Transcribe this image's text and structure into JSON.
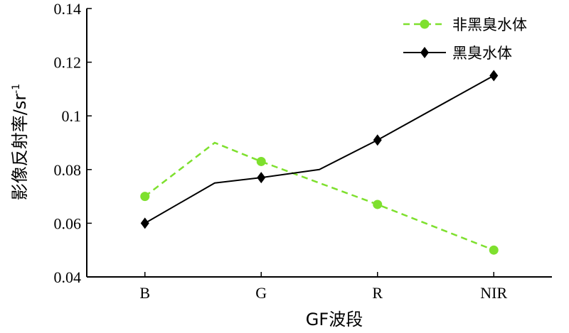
{
  "chart_data": {
    "type": "line",
    "title": "",
    "xlabel": "GF波段",
    "ylabel": "影像反射率/sr",
    "ylabel_superscript": "-1",
    "categories": [
      "B",
      "G",
      "R",
      "NIR"
    ],
    "x_extent": [
      0.5,
      4.5
    ],
    "ylim": [
      0.04,
      0.14
    ],
    "yticks": [
      "0.04",
      "0.06",
      "0.08",
      "0.1",
      "0.12",
      "0.14"
    ],
    "grid": false,
    "legend_position": "top-right",
    "series": [
      {
        "name": "非黑臭水体",
        "color": "#7ee02e",
        "line_style": "dashed",
        "marker": "circle",
        "points": [
          {
            "x": 1,
            "y": 0.07,
            "marker": true
          },
          {
            "x": 1.6,
            "y": 0.09,
            "marker": false
          },
          {
            "x": 2,
            "y": 0.083,
            "marker": true
          },
          {
            "x": 3,
            "y": 0.067,
            "marker": true
          },
          {
            "x": 4,
            "y": 0.05,
            "marker": true
          }
        ]
      },
      {
        "name": "黑臭水体",
        "color": "#000000",
        "line_style": "solid",
        "marker": "diamond",
        "points": [
          {
            "x": 1,
            "y": 0.06,
            "marker": true
          },
          {
            "x": 1.6,
            "y": 0.075,
            "marker": false
          },
          {
            "x": 2,
            "y": 0.077,
            "marker": true
          },
          {
            "x": 2.5,
            "y": 0.08,
            "marker": false
          },
          {
            "x": 3,
            "y": 0.091,
            "marker": true
          },
          {
            "x": 4,
            "y": 0.115,
            "marker": true
          }
        ]
      }
    ]
  }
}
